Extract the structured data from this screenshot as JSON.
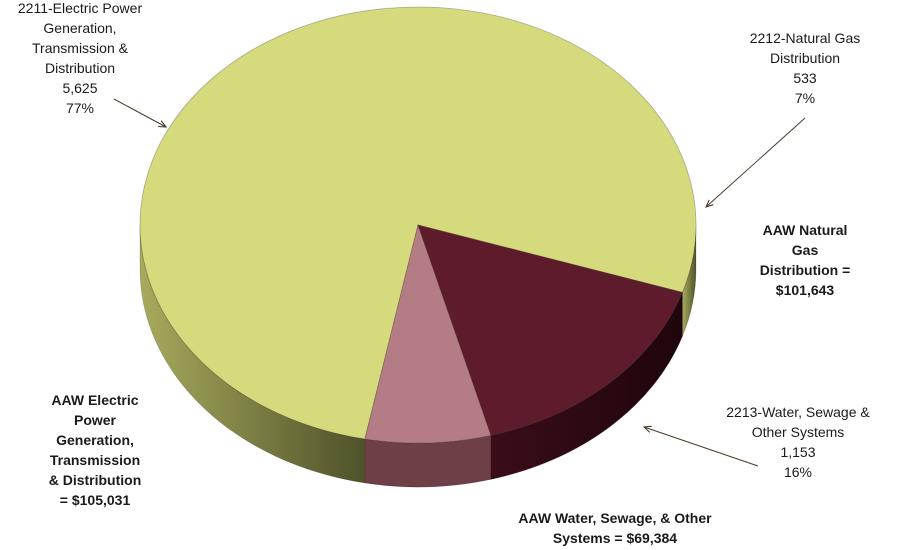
{
  "chart_data": {
    "type": "pie",
    "categories": [
      "2211-Electric Power Generation, Transmission & Distribution",
      "2212-Natural Gas Distribution",
      "2213-Water, Sewage & Other Systems"
    ],
    "values": [
      5625,
      533,
      1153
    ],
    "percent_labels": [
      "77%",
      "7%",
      "16%"
    ],
    "colors": [
      "#d5db7d",
      "#b47c85",
      "#5e1b2c"
    ],
    "side_colors": [
      "#8d8f48",
      "#6f3f48",
      "#2e0a14"
    ],
    "three_d": true,
    "legend": "none"
  },
  "labels": {
    "electric": {
      "lines": [
        "2211-Electric Power",
        "Generation,",
        "Transmission &",
        "Distribution"
      ],
      "value": "5,625",
      "percent": "77%"
    },
    "gas": {
      "lines": [
        "2212-Natural Gas",
        "Distribution"
      ],
      "value": "533",
      "percent": "7%"
    },
    "water": {
      "lines": [
        "2213-Water, Sewage &",
        "Other Systems"
      ],
      "value": "1,153",
      "percent": "16%"
    }
  },
  "annotations": {
    "electric_aaw": [
      "AAW Electric",
      "Power",
      "Generation,",
      "Transmission",
      "& Distribution",
      "= $105,031"
    ],
    "gas_aaw": [
      "AAW Natural",
      "Gas",
      "Distribution =",
      "$101,643"
    ],
    "water_aaw": [
      "AAW Water, Sewage, & Other",
      "Systems = $69,384"
    ]
  }
}
